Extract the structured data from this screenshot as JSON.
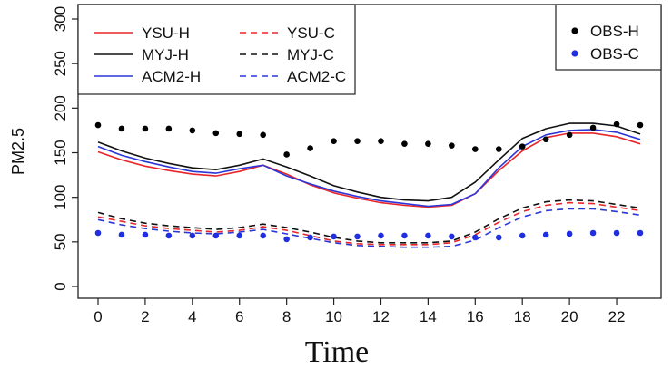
{
  "chart_data": {
    "type": "line",
    "xlabel": "Time",
    "ylabel": "PM2.5",
    "xlim": [
      0,
      23
    ],
    "ylim": [
      0,
      300
    ],
    "x_ticks": [
      0,
      2,
      4,
      6,
      8,
      10,
      12,
      14,
      16,
      18,
      20,
      22
    ],
    "y_ticks": [
      0,
      50,
      100,
      150,
      200,
      250,
      300
    ],
    "x": [
      0,
      1,
      2,
      3,
      4,
      5,
      6,
      7,
      8,
      9,
      10,
      11,
      12,
      13,
      14,
      15,
      16,
      17,
      18,
      19,
      20,
      21,
      22,
      23
    ],
    "grid": false,
    "series": [
      {
        "name": "YSU-H",
        "style": "solid",
        "color": "#e8262a",
        "values": [
          151,
          142,
          135,
          130,
          126,
          124,
          129,
          136,
          126,
          114,
          105,
          99,
          94,
          91,
          89,
          91,
          104,
          130,
          152,
          167,
          172,
          172,
          168,
          160
        ]
      },
      {
        "name": "MYJ-H",
        "style": "solid",
        "color": "#111111",
        "values": [
          162,
          152,
          144,
          138,
          133,
          131,
          136,
          143,
          134,
          124,
          113,
          106,
          100,
          97,
          96,
          100,
          117,
          142,
          166,
          177,
          183,
          183,
          180,
          171
        ]
      },
      {
        "name": "ACM2-H",
        "style": "solid",
        "color": "#2b35d8",
        "values": [
          157,
          147,
          140,
          134,
          129,
          127,
          132,
          136,
          124,
          115,
          107,
          101,
          96,
          93,
          90,
          92,
          104,
          133,
          157,
          170,
          175,
          176,
          173,
          165
        ]
      },
      {
        "name": "YSU-C",
        "style": "dashed",
        "color": "#e8262a",
        "values": [
          78,
          73,
          68,
          65,
          63,
          61,
          63,
          67,
          63,
          57,
          51,
          48,
          47,
          47,
          47,
          49,
          58,
          72,
          84,
          91,
          94,
          93,
          89,
          85
        ]
      },
      {
        "name": "MYJ-C",
        "style": "dashed",
        "color": "#111111",
        "values": [
          83,
          76,
          71,
          68,
          66,
          64,
          66,
          70,
          66,
          61,
          55,
          51,
          49,
          49,
          49,
          51,
          61,
          76,
          88,
          95,
          97,
          96,
          92,
          88
        ]
      },
      {
        "name": "ACM2-C",
        "style": "dashed",
        "color": "#2b35d8",
        "values": [
          75,
          69,
          65,
          62,
          60,
          59,
          61,
          64,
          59,
          54,
          49,
          46,
          45,
          44,
          44,
          45,
          52,
          66,
          78,
          85,
          87,
          87,
          84,
          80
        ]
      },
      {
        "name": "OBS-H",
        "style": "points",
        "color": "#000000",
        "values": [
          181,
          177,
          177,
          177,
          175,
          172,
          171,
          170,
          148,
          155,
          163,
          163,
          163,
          160,
          160,
          158,
          154,
          154,
          157,
          165,
          170,
          178,
          182,
          181
        ]
      },
      {
        "name": "OBS-C",
        "style": "points",
        "color": "#1f2ee0",
        "values": [
          60,
          58,
          58,
          57,
          57,
          57,
          57,
          57,
          53,
          55,
          56,
          56,
          57,
          57,
          57,
          56,
          55,
          55,
          57,
          58,
          59,
          60,
          60,
          60
        ]
      }
    ],
    "legend_left": [
      "YSU-H",
      "YSU-C",
      "MYJ-H",
      "MYJ-C",
      "ACM2-H",
      "ACM2-C"
    ],
    "legend_left_placement": "top-left",
    "legend_right": [
      "OBS-H",
      "OBS-C"
    ],
    "legend_right_placement": "top-right"
  }
}
